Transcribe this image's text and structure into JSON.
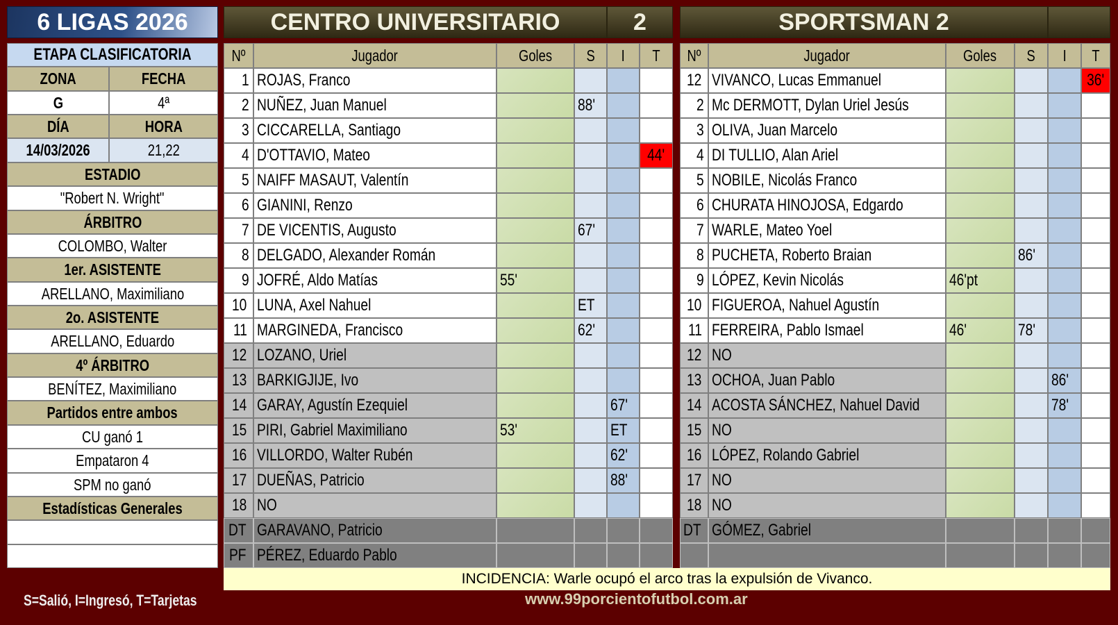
{
  "app_title": "6 LIGAS 2026",
  "left_panel": [
    {
      "label": "ETAPA CLASIFICATORIA",
      "style": "et"
    },
    {
      "cols": [
        "ZONA",
        "FECHA"
      ],
      "style": "hdr"
    },
    {
      "cols": [
        "G",
        "4ª"
      ],
      "style": "w"
    },
    {
      "cols": [
        "DÍA",
        "HORA"
      ],
      "style": "hdr"
    },
    {
      "cols": [
        "14/03/2026",
        "21,22"
      ],
      "style": "lb"
    },
    {
      "label": "ESTADIO",
      "style": "hdr"
    },
    {
      "label": "\"Robert N. Wright\"",
      "style": "w"
    },
    {
      "label": "ÁRBITRO",
      "style": "hdr"
    },
    {
      "label": "COLOMBO, Walter",
      "style": "w"
    },
    {
      "label": "1er. ASISTENTE",
      "style": "hdr"
    },
    {
      "label": "ARELLANO, Maximiliano",
      "style": "w"
    },
    {
      "label": "2o. ASISTENTE",
      "style": "hdr"
    },
    {
      "label": "ARELLANO, Eduardo",
      "style": "w"
    },
    {
      "label": "4º ÁRBITRO",
      "style": "hdr"
    },
    {
      "label": "BENÍTEZ, Maximiliano",
      "style": "w"
    },
    {
      "label": "Partidos entre ambos",
      "style": "hdr"
    },
    {
      "label": "CU ganó 1",
      "style": "w"
    },
    {
      "label": "Empataron 4",
      "style": "w"
    },
    {
      "label": "SPM no ganó",
      "style": "w"
    },
    {
      "label": "Estadísticas Generales",
      "style": "hdr"
    },
    {
      "label": "",
      "style": "w"
    },
    {
      "label": "",
      "style": "w"
    }
  ],
  "columns": [
    "Nº",
    "Jugador",
    "Goles",
    "S",
    "I",
    "T"
  ],
  "colors": {
    "background": "#5c0000",
    "card": "#ff0000",
    "goles": "#d7e4bd",
    "s": "#dbe5f1",
    "i": "#b8cce4",
    "substitute_row": "#c0c0c0",
    "staff_row": "#808080",
    "incidencia": "#ffffcc"
  },
  "teams": [
    {
      "name": "CENTRO UNIVERSITARIO",
      "score": "2",
      "players": [
        {
          "num": "1",
          "name": "ROJAS, Franco",
          "goles": "",
          "s": "",
          "i": "",
          "t": "",
          "type": "starter"
        },
        {
          "num": "2",
          "name": "NUÑEZ, Juan Manuel",
          "goles": "",
          "s": "88'",
          "i": "",
          "t": "",
          "type": "starter"
        },
        {
          "num": "3",
          "name": "CICCARELLA, Santiago",
          "goles": "",
          "s": "",
          "i": "",
          "t": "",
          "type": "starter"
        },
        {
          "num": "4",
          "name": "D'OTTAVIO, Mateo",
          "goles": "",
          "s": "",
          "i": "",
          "t": "44'",
          "card": "red",
          "type": "starter"
        },
        {
          "num": "5",
          "name": "NAIFF MASAUT, Valentín",
          "goles": "",
          "s": "",
          "i": "",
          "t": "",
          "type": "starter"
        },
        {
          "num": "6",
          "name": "GIANINI, Renzo",
          "goles": "",
          "s": "",
          "i": "",
          "t": "",
          "type": "starter"
        },
        {
          "num": "7",
          "name": "DE VICENTIS, Augusto",
          "goles": "",
          "s": "67'",
          "i": "",
          "t": "",
          "type": "starter"
        },
        {
          "num": "8",
          "name": "DELGADO, Alexander Román",
          "goles": "",
          "s": "",
          "i": "",
          "t": "",
          "type": "starter"
        },
        {
          "num": "9",
          "name": "JOFRÉ, Aldo Matías",
          "goles": "55'",
          "s": "",
          "i": "",
          "t": "",
          "type": "starter"
        },
        {
          "num": "10",
          "name": "LUNA, Axel Nahuel",
          "goles": "",
          "s": "ET",
          "i": "",
          "t": "",
          "type": "starter"
        },
        {
          "num": "11",
          "name": "MARGINEDA, Francisco",
          "goles": "",
          "s": "62'",
          "i": "",
          "t": "",
          "type": "starter"
        },
        {
          "num": "12",
          "name": "LOZANO, Uriel",
          "goles": "",
          "s": "",
          "i": "",
          "t": "",
          "type": "sub"
        },
        {
          "num": "13",
          "name": "BARKIGJIJE, Ivo",
          "goles": "",
          "s": "",
          "i": "",
          "t": "",
          "type": "sub"
        },
        {
          "num": "14",
          "name": "GARAY, Agustín Ezequiel",
          "goles": "",
          "s": "",
          "i": "67'",
          "t": "",
          "type": "sub"
        },
        {
          "num": "15",
          "name": "PIRI, Gabriel Maximiliano",
          "goles": "53'",
          "s": "",
          "i": "ET",
          "t": "",
          "type": "sub"
        },
        {
          "num": "16",
          "name": "VILLORDO, Walter Rubén",
          "goles": "",
          "s": "",
          "i": "62'",
          "t": "",
          "type": "sub"
        },
        {
          "num": "17",
          "name": "DUEÑAS, Patricio",
          "goles": "",
          "s": "",
          "i": "88'",
          "t": "",
          "type": "sub"
        },
        {
          "num": "18",
          "name": "NO",
          "goles": "",
          "s": "",
          "i": "",
          "t": "",
          "type": "sub"
        },
        {
          "num": "DT",
          "name": "GARAVANO, Patricio",
          "goles": "",
          "s": "",
          "i": "",
          "t": "",
          "type": "staff"
        },
        {
          "num": "PF",
          "name": "PÉREZ, Eduardo Pablo",
          "goles": "",
          "s": "",
          "i": "",
          "t": "",
          "type": "staff"
        }
      ]
    },
    {
      "name": "SPORTSMAN 2",
      "score": "",
      "players": [
        {
          "num": "12",
          "name": "VIVANCO, Lucas Emmanuel",
          "goles": "",
          "s": "",
          "i": "",
          "t": "36'",
          "card": "red",
          "type": "starter"
        },
        {
          "num": "2",
          "name": "Mc DERMOTT, Dylan Uriel Jesús",
          "goles": "",
          "s": "",
          "i": "",
          "t": "",
          "type": "starter"
        },
        {
          "num": "3",
          "name": "OLIVA, Juan Marcelo",
          "goles": "",
          "s": "",
          "i": "",
          "t": "",
          "type": "starter"
        },
        {
          "num": "4",
          "name": "DI TULLIO, Alan Ariel",
          "goles": "",
          "s": "",
          "i": "",
          "t": "",
          "type": "starter"
        },
        {
          "num": "5",
          "name": "NOBILE, Nicolás Franco",
          "goles": "",
          "s": "",
          "i": "",
          "t": "",
          "type": "starter"
        },
        {
          "num": "6",
          "name": "CHURATA HINOJOSA, Edgardo",
          "goles": "",
          "s": "",
          "i": "",
          "t": "",
          "type": "starter"
        },
        {
          "num": "7",
          "name": "WARLE, Mateo Yoel",
          "goles": "",
          "s": "",
          "i": "",
          "t": "",
          "type": "starter"
        },
        {
          "num": "8",
          "name": "PUCHETA, Roberto Braian",
          "goles": "",
          "s": "86'",
          "i": "",
          "t": "",
          "type": "starter"
        },
        {
          "num": "9",
          "name": "LÓPEZ, Kevin Nicolás",
          "goles": "46'pt",
          "s": "",
          "i": "",
          "t": "",
          "type": "starter"
        },
        {
          "num": "10",
          "name": "FIGUEROA, Nahuel Agustín",
          "goles": "",
          "s": "",
          "i": "",
          "t": "",
          "type": "starter"
        },
        {
          "num": "11",
          "name": "FERREIRA, Pablo Ismael",
          "goles": "46'",
          "s": "78'",
          "i": "",
          "t": "",
          "type": "starter"
        },
        {
          "num": "12",
          "name": "NO",
          "goles": "",
          "s": "",
          "i": "",
          "t": "",
          "type": "sub"
        },
        {
          "num": "13",
          "name": "OCHOA, Juan Pablo",
          "goles": "",
          "s": "",
          "i": "86'",
          "t": "",
          "type": "sub"
        },
        {
          "num": "14",
          "name": "ACOSTA SÁNCHEZ, Nahuel David",
          "goles": "",
          "s": "",
          "i": "78'",
          "t": "",
          "type": "sub"
        },
        {
          "num": "15",
          "name": "NO",
          "goles": "",
          "s": "",
          "i": "",
          "t": "",
          "type": "sub"
        },
        {
          "num": "16",
          "name": "LÓPEZ, Rolando Gabriel",
          "goles": "",
          "s": "",
          "i": "",
          "t": "",
          "type": "sub"
        },
        {
          "num": "17",
          "name": "NO",
          "goles": "",
          "s": "",
          "i": "",
          "t": "",
          "type": "sub"
        },
        {
          "num": "18",
          "name": "NO",
          "goles": "",
          "s": "",
          "i": "",
          "t": "",
          "type": "sub"
        },
        {
          "num": "DT",
          "name": "GÓMEZ, Gabriel",
          "goles": "",
          "s": "",
          "i": "",
          "t": "",
          "type": "staff"
        },
        {
          "num": "",
          "name": "",
          "goles": "",
          "s": "",
          "i": "",
          "t": "",
          "type": "staff"
        }
      ]
    }
  ],
  "incidencia": "INCIDENCIA: Warle ocupó el arco tras la expulsión de Vivanco.",
  "legend": "S=Salió, I=Ingresó, T=Tarjetas",
  "website": "www.99porcientofutbol.com.ar"
}
